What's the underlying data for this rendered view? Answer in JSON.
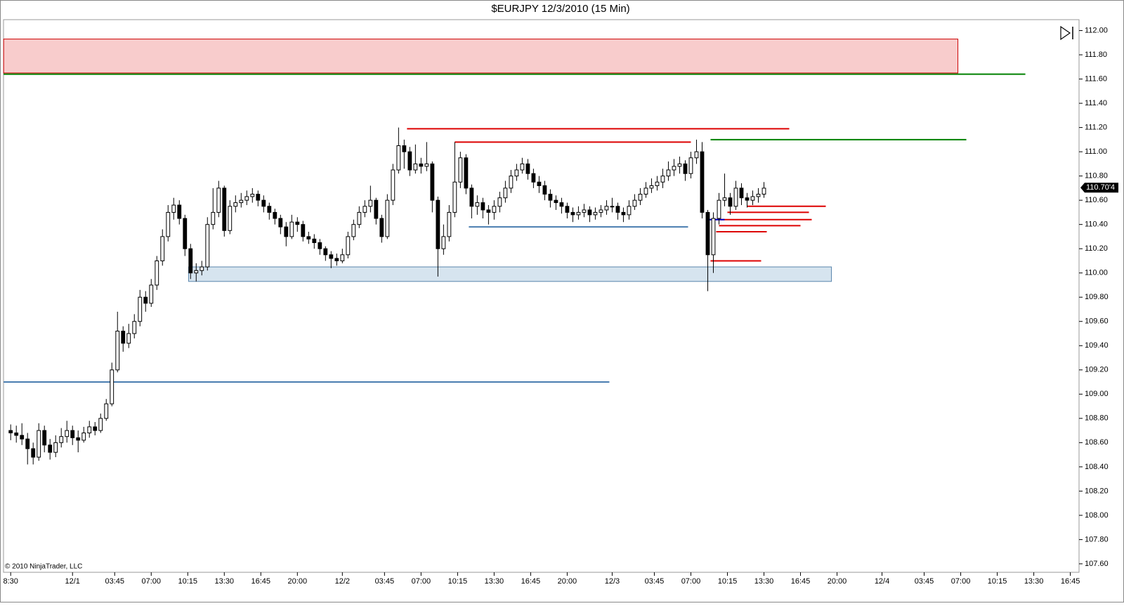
{
  "chart_data": {
    "type": "candlestick",
    "title": "$EURJPY  12/3/2010 (15 Min)",
    "copyright": "© 2010 NinjaTrader, LLC",
    "color": "#000000",
    "up_fill": "#ffffff",
    "xlim": [
      -2.55,
      380.1
    ],
    "ylim": [
      107.53,
      112.09
    ],
    "xticks": [
      {
        "value": 0,
        "label": "8:30"
      },
      {
        "value": 22,
        "label": "12/1"
      },
      {
        "value": 37,
        "label": "03:45"
      },
      {
        "value": 50,
        "label": "07:00"
      },
      {
        "value": 63,
        "label": "10:15"
      },
      {
        "value": 76,
        "label": "13:30"
      },
      {
        "value": 89,
        "label": "16:45"
      },
      {
        "value": 102,
        "label": "20:00"
      },
      {
        "value": 118,
        "label": "12/2"
      },
      {
        "value": 133,
        "label": "03:45"
      },
      {
        "value": 146,
        "label": "07:00"
      },
      {
        "value": 159,
        "label": "10:15"
      },
      {
        "value": 172,
        "label": "13:30"
      },
      {
        "value": 185,
        "label": "16:45"
      },
      {
        "value": 198,
        "label": "20:00"
      },
      {
        "value": 214,
        "label": "12/3"
      },
      {
        "value": 229,
        "label": "03:45"
      },
      {
        "value": 242,
        "label": "07:00"
      },
      {
        "value": 255,
        "label": "10:15"
      },
      {
        "value": 268,
        "label": "13:30"
      },
      {
        "value": 281,
        "label": "16:45"
      },
      {
        "value": 294,
        "label": "20:00"
      },
      {
        "value": 310,
        "label": "12/4"
      },
      {
        "value": 325,
        "label": "03:45"
      },
      {
        "value": 338,
        "label": "07:00"
      },
      {
        "value": 351,
        "label": "10:15"
      },
      {
        "value": 364,
        "label": "13:30"
      },
      {
        "value": 377,
        "label": "16:45"
      }
    ],
    "yticks": [
      {
        "value": 107.6,
        "label": "107.60"
      },
      {
        "value": 107.8,
        "label": "107.80"
      },
      {
        "value": 108.0,
        "label": "108.00"
      },
      {
        "value": 108.2,
        "label": "108.20"
      },
      {
        "value": 108.4,
        "label": "108.40"
      },
      {
        "value": 108.6,
        "label": "108.60"
      },
      {
        "value": 108.8,
        "label": "108.80"
      },
      {
        "value": 109.0,
        "label": "109.00"
      },
      {
        "value": 109.2,
        "label": "109.20"
      },
      {
        "value": 109.4,
        "label": "109.40"
      },
      {
        "value": 109.6,
        "label": "109.60"
      },
      {
        "value": 109.8,
        "label": "109.80"
      },
      {
        "value": 110.0,
        "label": "110.00"
      },
      {
        "value": 110.2,
        "label": "110.20"
      },
      {
        "value": 110.4,
        "label": "110.40"
      },
      {
        "value": 110.6,
        "label": "110.60"
      },
      {
        "value": 110.8,
        "label": "110.80"
      },
      {
        "value": 111.0,
        "label": "111.00"
      },
      {
        "value": 111.2,
        "label": "111.20"
      },
      {
        "value": 111.4,
        "label": "111.40"
      },
      {
        "value": 111.6,
        "label": "111.60"
      },
      {
        "value": 111.8,
        "label": "111.80"
      },
      {
        "value": 112.0,
        "label": "112.00"
      }
    ],
    "last_price": {
      "value": 110.704,
      "label": "110.70'4"
    },
    "x": [
      0,
      2,
      4,
      6,
      8,
      10,
      12,
      14,
      16,
      18,
      20,
      22,
      24,
      26,
      28,
      30,
      32,
      34,
      36,
      38,
      40,
      42,
      44,
      46,
      48,
      50,
      52,
      54,
      56,
      58,
      60,
      62,
      64,
      66,
      68,
      70,
      72,
      74,
      76,
      78,
      80,
      82,
      84,
      86,
      88,
      90,
      92,
      94,
      96,
      98,
      100,
      102,
      104,
      106,
      108,
      110,
      112,
      114,
      116,
      118,
      120,
      122,
      124,
      126,
      128,
      130,
      132,
      134,
      136,
      138,
      140,
      142,
      144,
      146,
      148,
      150,
      152,
      154,
      156,
      158,
      160,
      162,
      164,
      166,
      168,
      170,
      172,
      174,
      176,
      178,
      180,
      182,
      184,
      186,
      188,
      190,
      192,
      194,
      196,
      198,
      200,
      202,
      204,
      206,
      208,
      210,
      212,
      214,
      216,
      218,
      220,
      222,
      224,
      226,
      228,
      230,
      232,
      234,
      236,
      238,
      240,
      242,
      244,
      246,
      248,
      250,
      252,
      254,
      256,
      258,
      260,
      262,
      264,
      266,
      268
    ],
    "open": [
      108.7,
      108.68,
      108.66,
      108.63,
      108.55,
      108.48,
      108.7,
      108.58,
      108.52,
      108.6,
      108.65,
      108.7,
      108.64,
      108.62,
      108.68,
      108.73,
      108.7,
      108.8,
      108.92,
      109.2,
      109.52,
      109.42,
      109.5,
      109.6,
      109.8,
      109.75,
      109.9,
      110.1,
      110.3,
      110.5,
      110.56,
      110.45,
      110.2,
      110.0,
      110.02,
      110.05,
      110.4,
      110.5,
      110.7,
      110.35,
      110.55,
      110.58,
      110.6,
      110.63,
      110.65,
      110.6,
      110.55,
      110.5,
      110.45,
      110.38,
      110.3,
      110.42,
      110.4,
      110.3,
      110.28,
      110.25,
      110.2,
      110.15,
      110.12,
      110.1,
      110.15,
      110.3,
      110.4,
      110.5,
      110.55,
      110.6,
      110.45,
      110.3,
      110.6,
      110.85,
      111.05,
      111.0,
      110.85,
      110.9,
      110.88,
      110.9,
      110.6,
      110.2,
      110.3,
      110.5,
      110.75,
      110.95,
      110.7,
      110.55,
      110.58,
      110.52,
      110.5,
      110.55,
      110.62,
      110.7,
      110.8,
      110.85,
      110.9,
      110.82,
      110.75,
      110.72,
      110.65,
      110.6,
      110.58,
      110.55,
      110.5,
      110.48,
      110.5,
      110.52,
      110.48,
      110.5,
      110.52,
      110.55,
      110.55,
      110.5,
      110.48,
      110.55,
      110.6,
      110.65,
      110.7,
      110.72,
      110.75,
      110.8,
      110.85,
      110.88,
      110.9,
      110.82,
      110.95,
      111.0,
      110.5,
      110.15,
      110.45,
      110.6,
      110.62,
      110.55,
      110.7,
      110.62,
      110.6,
      110.63,
      110.65
    ],
    "high": [
      108.75,
      108.74,
      108.76,
      108.68,
      108.6,
      108.76,
      108.74,
      108.63,
      108.66,
      108.72,
      108.78,
      108.74,
      108.7,
      108.73,
      108.78,
      108.77,
      108.84,
      108.96,
      109.26,
      109.68,
      109.56,
      109.58,
      109.66,
      109.86,
      109.85,
      109.95,
      110.14,
      110.36,
      110.56,
      110.62,
      110.6,
      110.48,
      110.24,
      110.08,
      110.1,
      110.46,
      110.7,
      110.76,
      110.72,
      110.6,
      110.64,
      110.66,
      110.68,
      110.7,
      110.68,
      110.64,
      110.58,
      110.53,
      110.48,
      110.42,
      110.48,
      110.46,
      110.43,
      110.34,
      110.32,
      110.28,
      110.22,
      110.18,
      110.16,
      110.2,
      110.34,
      110.44,
      110.55,
      110.6,
      110.72,
      110.62,
      110.48,
      110.65,
      110.9,
      111.2,
      111.1,
      111.04,
      111.06,
      110.95,
      111.08,
      110.92,
      110.63,
      110.4,
      110.56,
      111.08,
      111.0,
      110.98,
      110.73,
      110.64,
      110.62,
      110.56,
      110.6,
      110.67,
      110.76,
      110.85,
      110.9,
      110.95,
      110.94,
      110.86,
      110.8,
      110.76,
      110.69,
      110.64,
      110.62,
      110.58,
      110.54,
      110.55,
      110.57,
      110.55,
      110.54,
      110.56,
      110.6,
      110.62,
      110.58,
      110.54,
      110.6,
      110.65,
      110.7,
      110.75,
      110.78,
      110.8,
      110.86,
      110.92,
      110.94,
      110.96,
      110.93,
      111.0,
      111.1,
      111.08,
      110.52,
      110.5,
      110.66,
      110.82,
      110.66,
      110.76,
      110.74,
      110.66,
      110.68,
      110.7,
      110.75
    ],
    "low": [
      108.62,
      108.6,
      108.58,
      108.42,
      108.42,
      108.45,
      108.52,
      108.46,
      108.48,
      108.56,
      108.6,
      108.58,
      108.52,
      108.6,
      108.64,
      108.66,
      108.68,
      108.78,
      108.9,
      109.18,
      109.35,
      109.38,
      109.46,
      109.56,
      109.68,
      109.72,
      109.86,
      110.06,
      110.26,
      110.44,
      110.4,
      110.14,
      109.95,
      109.93,
      109.98,
      110.02,
      110.36,
      110.46,
      110.3,
      110.32,
      110.5,
      110.54,
      110.56,
      110.58,
      110.55,
      110.5,
      110.44,
      110.4,
      110.32,
      110.22,
      110.28,
      110.34,
      110.26,
      110.24,
      110.2,
      110.15,
      110.1,
      110.04,
      110.06,
      110.08,
      110.12,
      110.27,
      110.37,
      110.46,
      110.5,
      110.4,
      110.25,
      110.28,
      110.56,
      110.82,
      110.86,
      110.8,
      110.82,
      110.82,
      110.84,
      110.5,
      109.97,
      110.15,
      110.26,
      110.46,
      110.7,
      110.65,
      110.45,
      110.48,
      110.45,
      110.4,
      110.44,
      110.5,
      110.58,
      110.66,
      110.76,
      110.82,
      110.77,
      110.7,
      110.66,
      110.6,
      110.54,
      110.52,
      110.49,
      110.45,
      110.42,
      110.44,
      110.46,
      110.42,
      110.44,
      110.46,
      110.48,
      110.5,
      110.44,
      110.42,
      110.44,
      110.52,
      110.56,
      110.62,
      110.66,
      110.68,
      110.7,
      110.76,
      110.8,
      110.82,
      110.76,
      110.78,
      110.9,
      110.45,
      109.85,
      110.0,
      110.4,
      110.55,
      110.48,
      110.52,
      110.56,
      110.54,
      110.56,
      110.58,
      110.62
    ],
    "close": [
      108.68,
      108.66,
      108.63,
      108.55,
      108.48,
      108.7,
      108.58,
      108.52,
      108.6,
      108.65,
      108.7,
      108.64,
      108.62,
      108.68,
      108.73,
      108.7,
      108.8,
      108.92,
      109.2,
      109.52,
      109.42,
      109.5,
      109.6,
      109.8,
      109.75,
      109.9,
      110.1,
      110.3,
      110.5,
      110.56,
      110.45,
      110.2,
      110.0,
      110.02,
      110.05,
      110.4,
      110.5,
      110.7,
      110.35,
      110.55,
      110.58,
      110.6,
      110.63,
      110.65,
      110.6,
      110.55,
      110.5,
      110.45,
      110.38,
      110.3,
      110.42,
      110.4,
      110.3,
      110.28,
      110.25,
      110.2,
      110.15,
      110.12,
      110.1,
      110.15,
      110.3,
      110.4,
      110.5,
      110.55,
      110.6,
      110.45,
      110.3,
      110.6,
      110.85,
      111.05,
      111.0,
      110.85,
      110.9,
      110.88,
      110.9,
      110.6,
      110.2,
      110.3,
      110.5,
      110.75,
      110.95,
      110.7,
      110.55,
      110.58,
      110.52,
      110.5,
      110.55,
      110.62,
      110.7,
      110.8,
      110.85,
      110.9,
      110.82,
      110.75,
      110.72,
      110.65,
      110.6,
      110.58,
      110.55,
      110.5,
      110.48,
      110.5,
      110.52,
      110.48,
      110.5,
      110.52,
      110.55,
      110.55,
      110.5,
      110.48,
      110.55,
      110.6,
      110.65,
      110.7,
      110.72,
      110.75,
      110.8,
      110.85,
      110.88,
      110.9,
      110.82,
      110.95,
      111.0,
      110.5,
      110.15,
      110.45,
      110.6,
      110.62,
      110.55,
      110.7,
      110.62,
      110.6,
      110.63,
      110.65,
      110.7
    ],
    "zones": [
      {
        "x": [
          -2.5,
          337
        ],
        "y": [
          111.65,
          111.93
        ],
        "color": "#f8cccc",
        "border": "#cc0000"
      },
      {
        "x": [
          63.3,
          292
        ],
        "y": [
          109.93,
          110.05
        ],
        "color": "#d6e4ef",
        "border": "#5b86ad"
      }
    ],
    "levels": [
      {
        "x": [
          -2.5,
          361
        ],
        "y": 111.64,
        "color": "#008000"
      },
      {
        "x": [
          -2.5,
          213
        ],
        "y": 109.1,
        "color": "#4a7db0"
      },
      {
        "x": [
          141,
          277
        ],
        "y": 111.19,
        "color": "#dd0000"
      },
      {
        "x": [
          158,
          242
        ],
        "y": 111.08,
        "color": "#dd0000"
      },
      {
        "x": [
          249,
          340
        ],
        "y": 111.1,
        "color": "#008000"
      },
      {
        "x": [
          163,
          241
        ],
        "y": 110.38,
        "color": "#4a7db0"
      },
      {
        "x": [
          262,
          290
        ],
        "y": 110.55,
        "color": "#dd0000"
      },
      {
        "x": [
          255,
          284
        ],
        "y": 110.5,
        "color": "#dd0000"
      },
      {
        "x": [
          251,
          285
        ],
        "y": 110.44,
        "color": "#dd0000"
      },
      {
        "x": [
          252,
          281
        ],
        "y": 110.39,
        "color": "#dd0000"
      },
      {
        "x": [
          251,
          269
        ],
        "y": 110.34,
        "color": "#dd0000"
      },
      {
        "x": [
          249,
          267
        ],
        "y": 110.1,
        "color": "#dd0000"
      },
      {
        "x": [
          248,
          254
        ],
        "y": 110.44,
        "color": "#0000cc"
      }
    ]
  }
}
